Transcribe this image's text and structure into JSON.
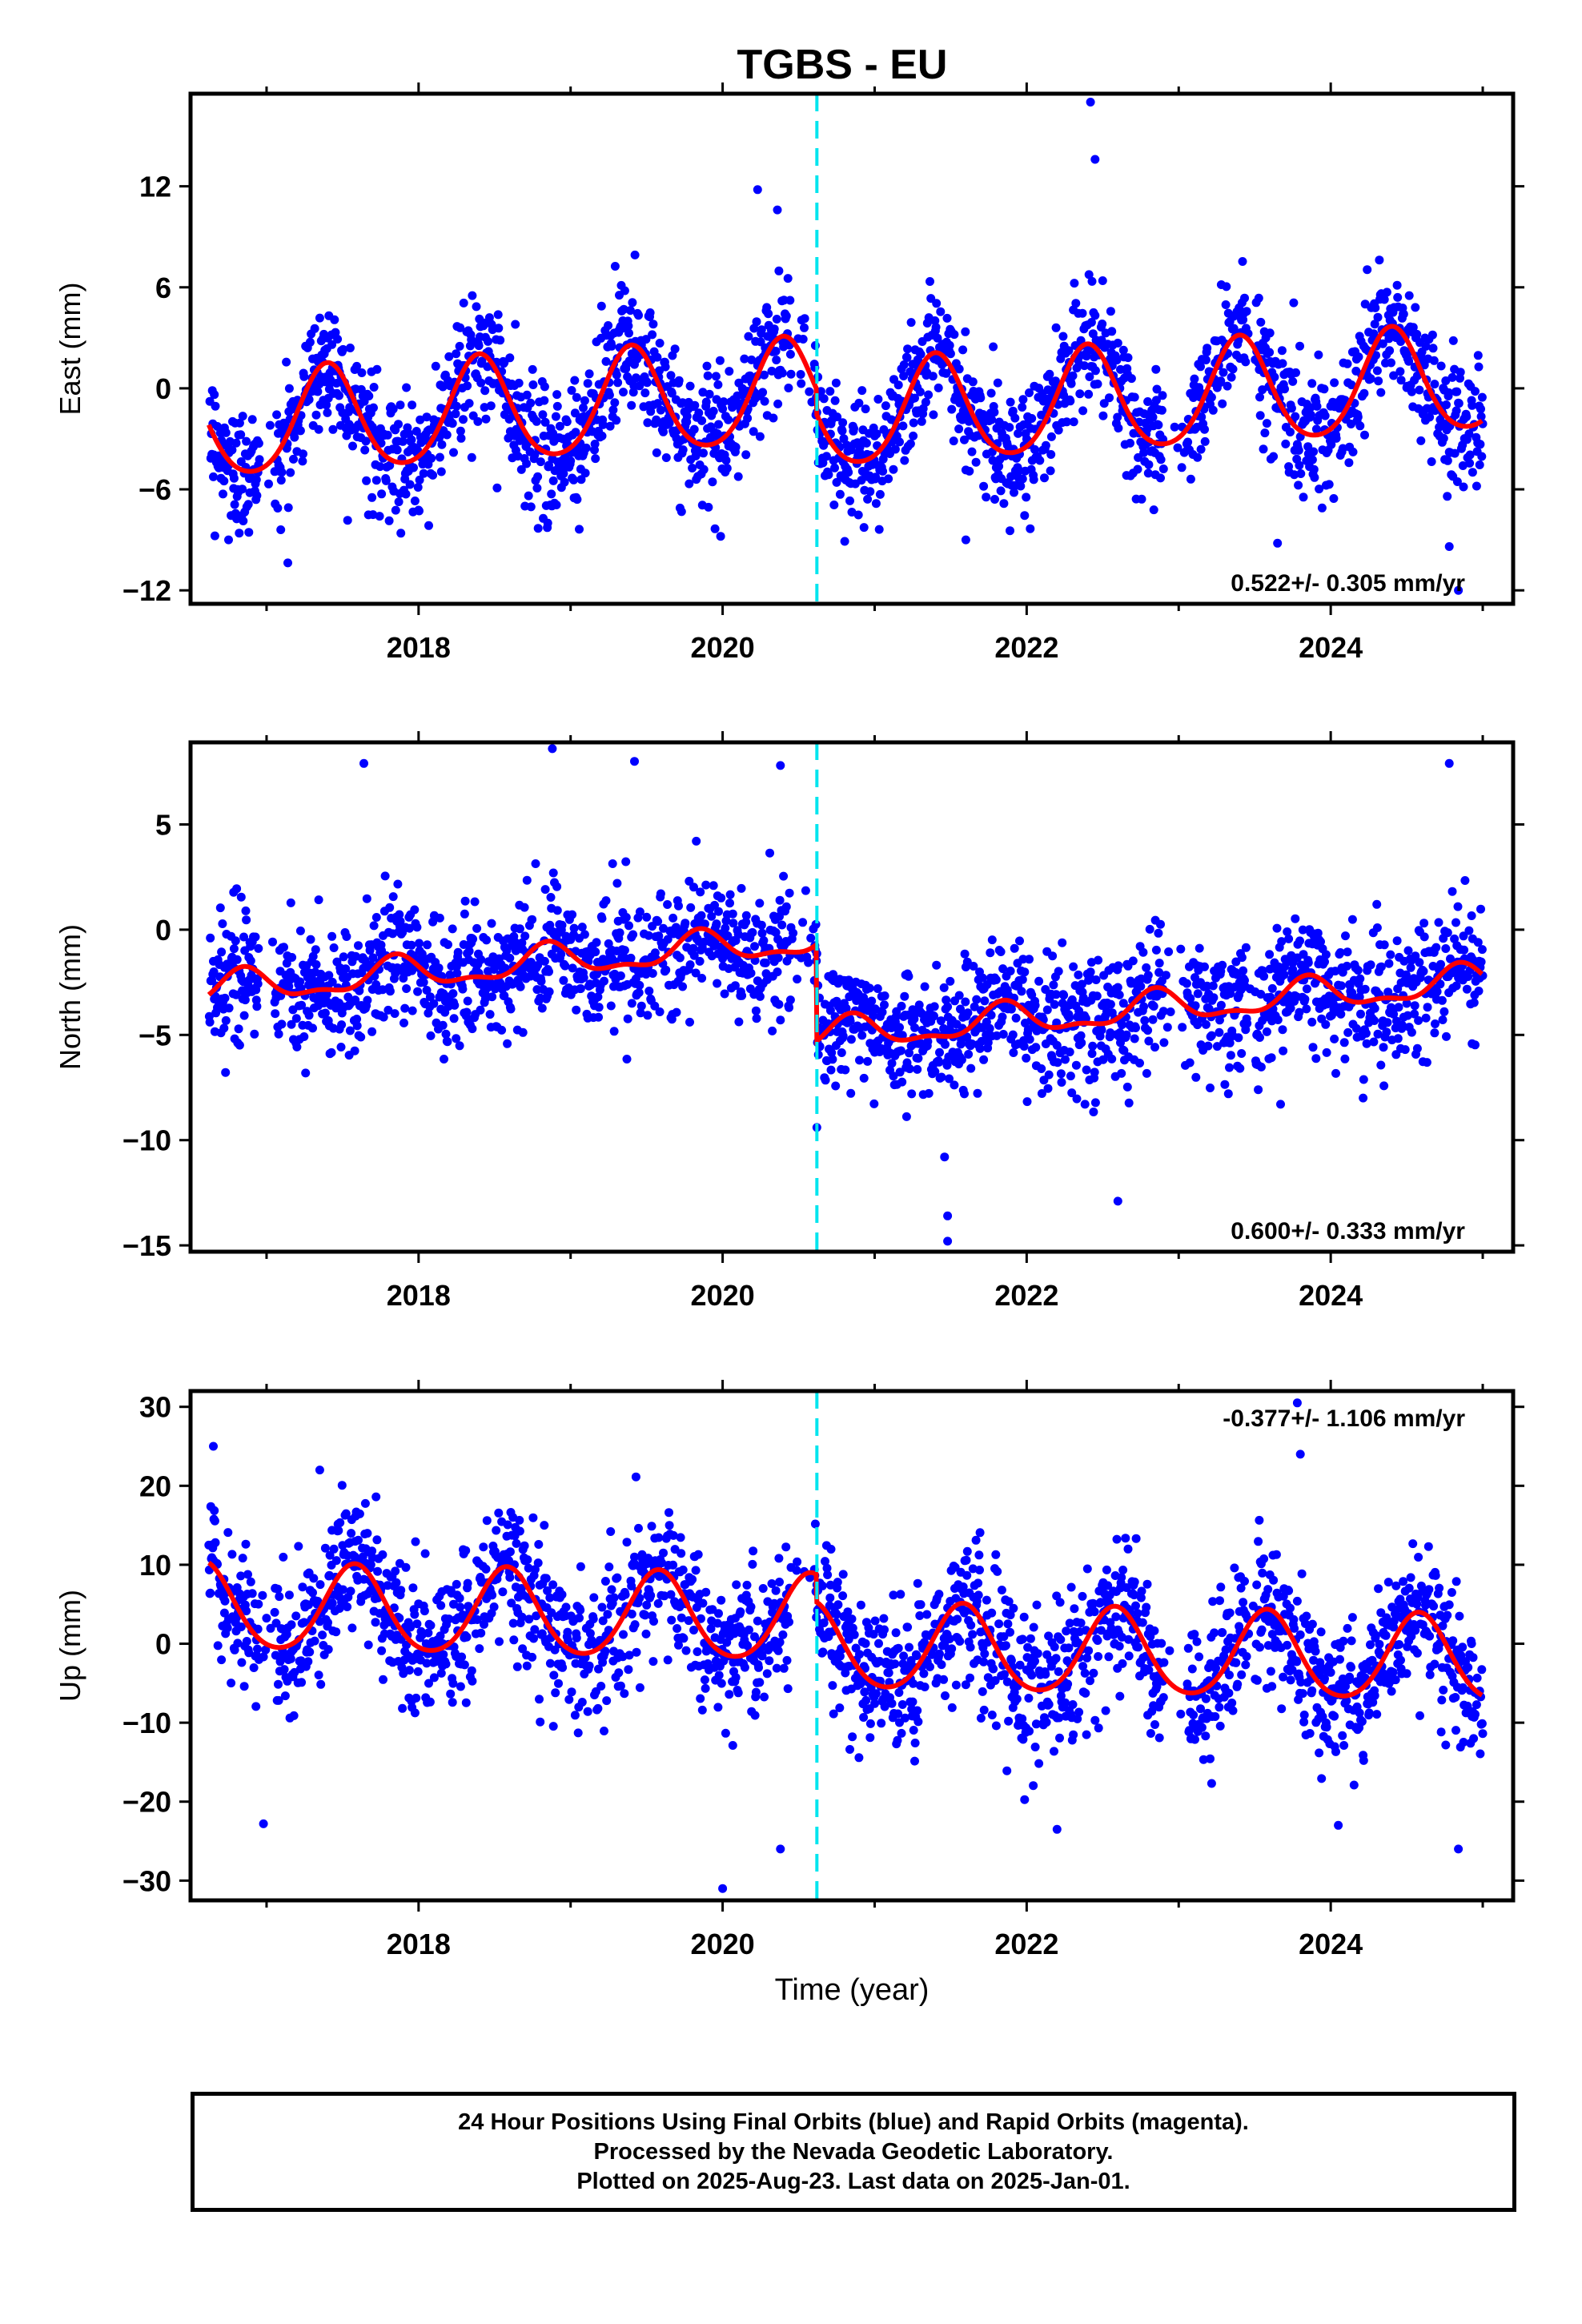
{
  "title": "TGBS - EU",
  "caption": [
    "24 Hour Positions Using Final Orbits (blue) and Rapid Orbits (magenta).",
    "Processed by the Nevada Geodetic Laboratory.",
    "Plotted on 2025-Aug-23. Last data on 2025-Jan-01."
  ],
  "colors": {
    "points": "#0000ff",
    "model": "#ff0000",
    "event_line": "#00e5ee",
    "frame": "#000000"
  },
  "chart_data": [
    {
      "type": "scatter",
      "component": "East",
      "ylabel": "East (mm)",
      "xlabel": "",
      "xlim": [
        2016.5,
        2025.2
      ],
      "ylim": [
        -12.8,
        17.5
      ],
      "xticks": [
        2018,
        2020,
        2022,
        2024
      ],
      "xtick_labels": [
        "2018",
        "2020",
        "2022",
        "2024"
      ],
      "yticks": [
        -12,
        -6,
        0,
        6,
        12
      ],
      "ytick_labels": [
        "−12",
        "−6",
        "0",
        "6",
        "12"
      ],
      "rate_text": "0.522+/- 0.305 mm/yr",
      "rate_position": "bottom-right",
      "event_line_x": 2020.62,
      "data_range": [
        2016.62,
        2025.0
      ],
      "model": {
        "offset": -0.3,
        "trend_mm_per_yr": 0.522,
        "annual_amp": 3.1,
        "annual_phase_peak": 2017.4,
        "semiannual_amp": 0.4,
        "jump_at": 2020.62,
        "jump": -1.5,
        "noise_sd": 1.9
      },
      "outliers": [
        [
          2016.75,
          -9.0
        ],
        [
          2016.82,
          -8.6
        ],
        [
          2020.23,
          11.8
        ],
        [
          2020.36,
          10.6
        ],
        [
          2022.42,
          17.0
        ],
        [
          2022.45,
          13.6
        ],
        [
          2023.65,
          -9.2
        ],
        [
          2024.78,
          -9.4
        ],
        [
          2024.84,
          -12.0
        ],
        [
          2021.6,
          -9.0
        ],
        [
          2018.85,
          -8.0
        ]
      ]
    },
    {
      "type": "scatter",
      "component": "North",
      "ylabel": "North (mm)",
      "xlabel": "",
      "xlim": [
        2016.5,
        2025.2
      ],
      "ylim": [
        -15.3,
        8.9
      ],
      "xticks": [
        2018,
        2020,
        2022,
        2024
      ],
      "xtick_labels": [
        "2018",
        "2020",
        "2022",
        "2024"
      ],
      "yticks": [
        -15,
        -10,
        -5,
        0,
        5
      ],
      "ytick_labels": [
        "−15",
        "−10",
        "−5",
        "0",
        "5"
      ],
      "rate_text": "0.600+/- 0.333 mm/yr",
      "rate_position": "bottom-right",
      "event_line_x": 2020.62,
      "data_range": [
        2016.62,
        2025.0
      ],
      "model": {
        "offset": -0.5,
        "trend_mm_per_yr": 0.6,
        "annual_amp": 0.7,
        "annual_phase_peak": 2017.85,
        "semiannual_amp": 0.3,
        "jump_at": 2020.62,
        "jump": -4.6,
        "noise_sd": 1.5
      },
      "outliers": [
        [
          2021.48,
          -14.8
        ],
        [
          2021.48,
          -13.6
        ],
        [
          2022.6,
          -12.9
        ],
        [
          2021.46,
          -10.8
        ],
        [
          2020.62,
          -9.4
        ],
        [
          2018.88,
          8.6
        ],
        [
          2019.42,
          8.0
        ],
        [
          2024.78,
          7.9
        ],
        [
          2020.38,
          7.8
        ],
        [
          2017.64,
          7.9
        ]
      ]
    },
    {
      "type": "scatter",
      "component": "Up",
      "ylabel": "Up (mm)",
      "xlabel": "Time (year)",
      "xlim": [
        2016.5,
        2025.2
      ],
      "ylim": [
        -32.5,
        32.0
      ],
      "xticks": [
        2018,
        2020,
        2022,
        2024
      ],
      "xtick_labels": [
        "2018",
        "2020",
        "2022",
        "2024"
      ],
      "yticks": [
        -30,
        -20,
        -10,
        0,
        10,
        20,
        30
      ],
      "ytick_labels": [
        "−30",
        "−20",
        "−10",
        "0",
        "10",
        "20",
        "30"
      ],
      "rate_text": "-0.377+/- 1.106 mm/yr",
      "rate_position": "top-right",
      "event_line_x": 2020.62,
      "data_range": [
        2016.62,
        2025.0
      ],
      "model": {
        "offset": 3.0,
        "trend_mm_per_yr": -0.377,
        "annual_amp": 5.4,
        "annual_phase_peak": 2017.58,
        "semiannual_amp": 0.6,
        "jump_at": 2020.62,
        "jump": -3.5,
        "noise_sd": 4.5
      },
      "outliers": [
        [
          2016.65,
          25.0
        ],
        [
          2020.0,
          -31.0
        ],
        [
          2020.38,
          -26.0
        ],
        [
          2023.78,
          30.5
        ],
        [
          2023.8,
          24.0
        ],
        [
          2024.84,
          -26.0
        ],
        [
          2016.98,
          -22.8
        ],
        [
          2017.35,
          22.0
        ],
        [
          2022.2,
          -23.5
        ],
        [
          2024.05,
          -23.0
        ]
      ]
    }
  ]
}
